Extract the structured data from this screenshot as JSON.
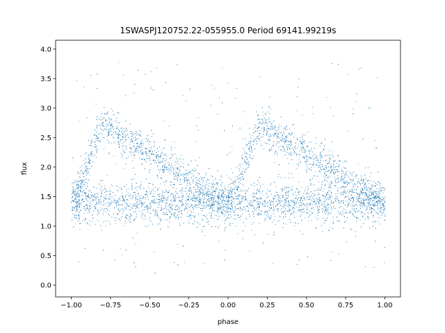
{
  "chart_data": {
    "type": "scatter",
    "title": "1SWASPJ120752.22-055955.0 Period 69141.99219s",
    "xlabel": "phase",
    "ylabel": "flux",
    "xlim": [
      -1.1,
      1.1
    ],
    "ylim": [
      -0.2,
      4.15
    ],
    "xticks": [
      -1.0,
      -0.75,
      -0.5,
      -0.25,
      0.0,
      0.25,
      0.5,
      0.75,
      1.0
    ],
    "xtick_labels": [
      "−1.00",
      "−0.75",
      "−0.50",
      "−0.25",
      "0.00",
      "0.25",
      "0.50",
      "0.75",
      "1.00"
    ],
    "yticks": [
      0.0,
      0.5,
      1.0,
      1.5,
      2.0,
      2.5,
      3.0,
      3.5,
      4.0
    ],
    "ytick_labels": [
      "0.0",
      "0.5",
      "1.0",
      "1.5",
      "2.0",
      "2.5",
      "3.0",
      "3.5",
      "4.0"
    ],
    "grid": false,
    "marker_color": "#1f77b4",
    "series": [
      {
        "description_points": "phase-folded light curve, two cycles shown (phase -1 to 1)",
        "points": [
          [
            -1.0,
            1.4
          ],
          [
            -0.95,
            1.45
          ],
          [
            -0.9,
            1.5
          ],
          [
            -0.85,
            1.48
          ],
          [
            -0.8,
            2.75
          ],
          [
            -0.78,
            2.8
          ],
          [
            -0.75,
            2.7
          ],
          [
            -0.72,
            2.6
          ],
          [
            -0.7,
            2.5
          ],
          [
            -0.65,
            2.35
          ],
          [
            -0.6,
            2.2
          ],
          [
            -0.55,
            2.05
          ],
          [
            -0.5,
            1.95
          ],
          [
            -0.45,
            1.85
          ],
          [
            -0.4,
            1.75
          ],
          [
            -0.35,
            1.65
          ],
          [
            -0.3,
            1.6
          ],
          [
            -0.25,
            1.5
          ],
          [
            -0.2,
            1.45
          ],
          [
            -0.15,
            1.4
          ],
          [
            -0.1,
            1.35
          ],
          [
            -0.05,
            1.3
          ],
          [
            0.0,
            1.3
          ],
          [
            0.05,
            1.5
          ],
          [
            0.1,
            1.8
          ],
          [
            0.15,
            2.3
          ],
          [
            0.2,
            2.75
          ],
          [
            0.22,
            2.8
          ],
          [
            0.25,
            2.7
          ],
          [
            0.3,
            2.55
          ],
          [
            0.35,
            2.35
          ],
          [
            0.4,
            2.2
          ],
          [
            0.45,
            2.05
          ],
          [
            0.5,
            1.95
          ],
          [
            0.55,
            1.85
          ],
          [
            0.6,
            1.75
          ],
          [
            0.65,
            1.65
          ],
          [
            0.7,
            1.6
          ],
          [
            0.75,
            1.5
          ],
          [
            0.8,
            1.45
          ],
          [
            0.85,
            1.4
          ],
          [
            0.9,
            1.38
          ],
          [
            0.95,
            1.4
          ],
          [
            1.0,
            1.4
          ]
        ]
      }
    ]
  }
}
